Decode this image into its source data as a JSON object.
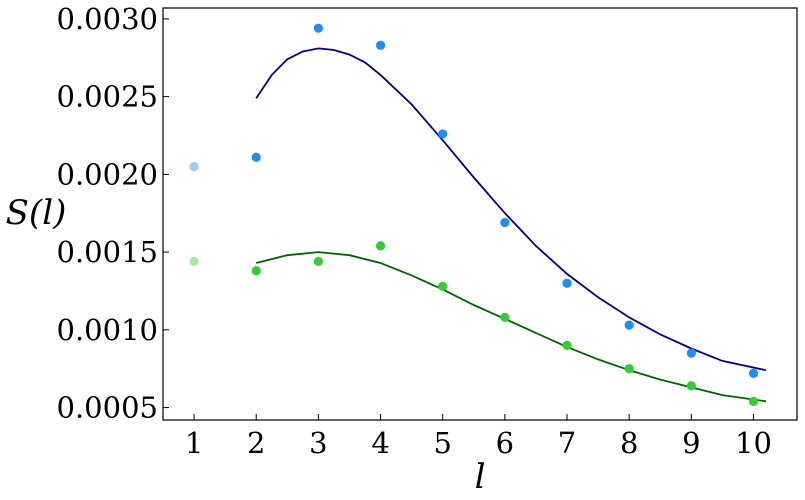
{
  "chart_data": {
    "type": "scatter",
    "xlabel": "l",
    "ylabel": "S(l)",
    "title": "",
    "xlim": [
      0.5,
      10.7
    ],
    "ylim": [
      0.00042,
      0.00307
    ],
    "xticks": [
      1,
      2,
      3,
      4,
      5,
      6,
      7,
      8,
      9,
      10
    ],
    "xtick_labels": [
      "1",
      "2",
      "3",
      "4",
      "5",
      "6",
      "7",
      "8",
      "9",
      "10"
    ],
    "yticks": [
      0.0005,
      0.001,
      0.0015,
      0.002,
      0.0025,
      0.003
    ],
    "ytick_labels": [
      "0.0005",
      "0.0010",
      "0.0015",
      "0.0020",
      "0.0025",
      "0.0030"
    ],
    "grid": false,
    "legend": "none",
    "series": [
      {
        "color": "#1f8ef1",
        "points": [
          {
            "x": 1,
            "y": 0.00205,
            "faded": true
          },
          {
            "x": 2,
            "y": 0.00211
          },
          {
            "x": 3,
            "y": 0.00294
          },
          {
            "x": 4,
            "y": 0.00283
          },
          {
            "x": 5,
            "y": 0.00226
          },
          {
            "x": 6,
            "y": 0.00169
          },
          {
            "x": 7,
            "y": 0.0013
          },
          {
            "x": 8,
            "y": 0.00103
          },
          {
            "x": 9,
            "y": 0.00085
          },
          {
            "x": 10,
            "y": 0.00072
          }
        ],
        "fit_color": "#00008b",
        "fit": [
          [
            2.0,
            0.00249
          ],
          [
            2.25,
            0.00264
          ],
          [
            2.5,
            0.00274
          ],
          [
            2.75,
            0.00279
          ],
          [
            3.0,
            0.00281
          ],
          [
            3.25,
            0.0028
          ],
          [
            3.5,
            0.00277
          ],
          [
            3.75,
            0.00272
          ],
          [
            4.0,
            0.00264
          ],
          [
            4.5,
            0.00245
          ],
          [
            5.0,
            0.00222
          ],
          [
            5.5,
            0.00198
          ],
          [
            6.0,
            0.00175
          ],
          [
            6.5,
            0.00154
          ],
          [
            7.0,
            0.00136
          ],
          [
            7.5,
            0.00121
          ],
          [
            8.0,
            0.00108
          ],
          [
            8.5,
            0.00097
          ],
          [
            9.0,
            0.00088
          ],
          [
            9.5,
            0.0008
          ],
          [
            10.2,
            0.00074
          ]
        ]
      },
      {
        "color": "#33cc33",
        "points": [
          {
            "x": 1,
            "y": 0.00144,
            "faded": true
          },
          {
            "x": 2,
            "y": 0.00138
          },
          {
            "x": 3,
            "y": 0.00144
          },
          {
            "x": 4,
            "y": 0.00154
          },
          {
            "x": 5,
            "y": 0.00128
          },
          {
            "x": 6,
            "y": 0.00108
          },
          {
            "x": 7,
            "y": 0.0009
          },
          {
            "x": 8,
            "y": 0.00075
          },
          {
            "x": 9,
            "y": 0.00064
          },
          {
            "x": 10,
            "y": 0.00054
          }
        ],
        "fit_color": "#006400",
        "fit": [
          [
            2.0,
            0.00143
          ],
          [
            2.5,
            0.00148
          ],
          [
            3.0,
            0.0015
          ],
          [
            3.5,
            0.00148
          ],
          [
            4.0,
            0.00143
          ],
          [
            4.5,
            0.00135
          ],
          [
            5.0,
            0.00126
          ],
          [
            5.5,
            0.00116
          ],
          [
            6.0,
            0.00107
          ],
          [
            6.5,
            0.00098
          ],
          [
            7.0,
            0.00089
          ],
          [
            7.5,
            0.00081
          ],
          [
            8.0,
            0.00074
          ],
          [
            8.5,
            0.00068
          ],
          [
            9.0,
            0.00063
          ],
          [
            9.5,
            0.00058
          ],
          [
            10.2,
            0.00054
          ]
        ]
      }
    ]
  }
}
